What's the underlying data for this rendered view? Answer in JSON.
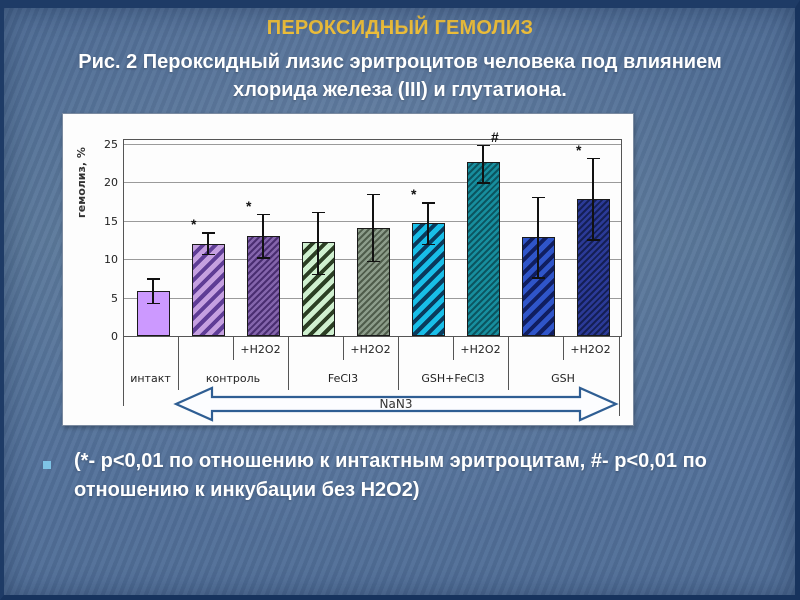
{
  "slide": {
    "title": "ПЕРОКСИДНЫЙ ГЕМОЛИЗ",
    "subtitle": "Рис. 2 Пероксидный лизис эритроцитов человека под влиянием хлорида железа (III) и глутатиона.",
    "footnote": "(*- p<0,01 по отношению к интактным эритроцитам, #- p<0,01 по отношению к инкубации без H2O2)",
    "colors": {
      "background": "#54719A",
      "title": "#EDBE3A",
      "text": "#FFFFFF",
      "bullet": "#7EC3E6",
      "edge": "#1E3B66",
      "arrow_stroke": "#2F5E93"
    }
  },
  "chart_data": {
    "type": "bar",
    "title": "",
    "ylabel": "гемолиз, %",
    "xlabel": "",
    "ylim": [
      0,
      25
    ],
    "yticks": [
      0,
      5,
      10,
      15,
      20,
      25
    ],
    "grid": true,
    "legend": null,
    "axis_annotation": "NaN3",
    "groups": [
      {
        "label": "интакт",
        "span": 1
      },
      {
        "label": "контроль",
        "span": 2
      },
      {
        "label": "FeCl3",
        "span": 2
      },
      {
        "label": "GSH+FeCl3",
        "span": 2
      },
      {
        "label": "GSH",
        "span": 2
      }
    ],
    "bars": [
      {
        "group": "интакт",
        "sublabel": "",
        "value": 5.8,
        "err_low": 4.2,
        "err_high": 7.5,
        "marker": "",
        "fill": "#CC99FF",
        "stripe": "",
        "pattern": "solid"
      },
      {
        "group": "контроль",
        "sublabel": "",
        "value": 12.0,
        "err_low": 10.6,
        "err_high": 13.5,
        "marker": "*",
        "fill": "#C5A0E0",
        "stripe": "#5F3D96",
        "pattern": "stripes"
      },
      {
        "group": "контроль",
        "sublabel": "+H2O2",
        "value": 13.0,
        "err_low": 10.1,
        "err_high": 15.9,
        "marker": "*",
        "fill": "#8465AC",
        "stripe": "#4A2E71",
        "pattern": "fine"
      },
      {
        "group": "FeCl3",
        "sublabel": "",
        "value": 12.2,
        "err_low": 8.0,
        "err_high": 16.2,
        "marker": "",
        "fill": "#CFF0CF",
        "stripe": "#2C3F24",
        "pattern": "stripes"
      },
      {
        "group": "FeCl3",
        "sublabel": "+H2O2",
        "value": 14.1,
        "err_low": 9.7,
        "err_high": 18.5,
        "marker": "",
        "fill": "#8C9C8A",
        "stripe": "#4F5C4B",
        "pattern": "fine"
      },
      {
        "group": "GSH+FeCl3",
        "sublabel": "",
        "value": 14.7,
        "err_low": 11.9,
        "err_high": 17.4,
        "marker": "*",
        "fill": "#18BEE8",
        "stripe": "#0A3A5C",
        "pattern": "stripes"
      },
      {
        "group": "GSH+FeCl3",
        "sublabel": "+H2O2",
        "value": 22.6,
        "err_low": 19.9,
        "err_high": 24.9,
        "marker": "#",
        "fill": "#178E9E",
        "stripe": "#0B5560",
        "pattern": "fine"
      },
      {
        "group": "GSH",
        "sublabel": "",
        "value": 12.9,
        "err_low": 7.5,
        "err_high": 18.1,
        "marker": "",
        "fill": "#2F55C9",
        "stripe": "#101E60",
        "pattern": "stripes"
      },
      {
        "group": "GSH",
        "sublabel": "+H2O2",
        "value": 17.8,
        "err_low": 12.5,
        "err_high": 23.2,
        "marker": "*",
        "fill": "#2B3A97",
        "stripe": "#141F55",
        "pattern": "fine"
      }
    ]
  }
}
